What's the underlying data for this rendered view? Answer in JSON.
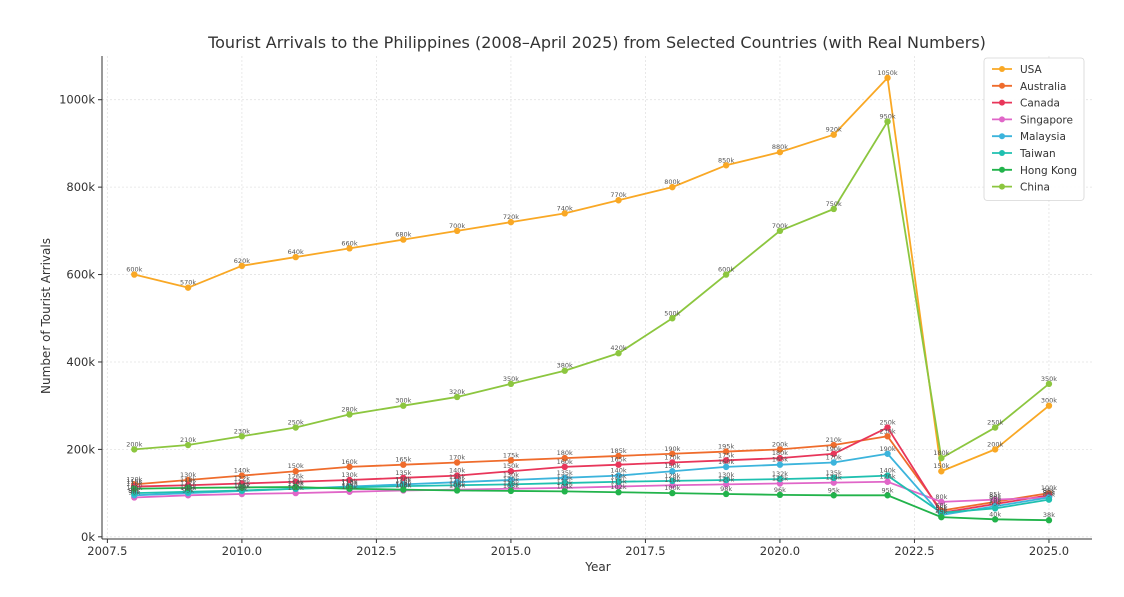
{
  "chart_data": {
    "type": "line",
    "title": "Tourist Arrivals to the Philippines (2008–April 2025) from Selected Countries (with Real Numbers)",
    "xlabel": "Year",
    "ylabel": "Number of Tourist Arrivals",
    "xlim": [
      2007.4,
      2025.8
    ],
    "ylim": [
      -5000,
      1100000
    ],
    "x_ticks": [
      2007.5,
      2010.0,
      2012.5,
      2015.0,
      2017.5,
      2020.0,
      2022.5,
      2025.0
    ],
    "x_tick_labels": [
      "2007.5",
      "2010.0",
      "2012.5",
      "2015.0",
      "2017.5",
      "2020.0",
      "2022.5",
      "2025.0"
    ],
    "y_ticks": [
      0,
      200000,
      400000,
      600000,
      800000,
      1000000
    ],
    "y_tick_labels": [
      "0k",
      "200k",
      "400k",
      "600k",
      "800k",
      "1000k"
    ],
    "grid": true,
    "legend_position": "top-right",
    "x": [
      2008,
      2009,
      2010,
      2011,
      2012,
      2013,
      2014,
      2015,
      2016,
      2017,
      2018,
      2019,
      2020,
      2021,
      2022,
      2023,
      2024,
      2025
    ],
    "series": [
      {
        "name": "USA",
        "color": "#f9a825",
        "values": [
          600000,
          570000,
          620000,
          640000,
          660000,
          680000,
          700000,
          720000,
          740000,
          770000,
          800000,
          850000,
          880000,
          920000,
          1050000,
          150000,
          200000,
          300000
        ],
        "labels": [
          "600k",
          "570k",
          "620k",
          "640k",
          "660k",
          "680k",
          "700k",
          "720k",
          "740k",
          "770k",
          "800k",
          "850k",
          "880k",
          "920k",
          "1050k",
          "150k",
          "200k",
          "300k"
        ]
      },
      {
        "name": "Australia",
        "color": "#ef6c2c",
        "values": [
          120000,
          130000,
          140000,
          150000,
          160000,
          165000,
          170000,
          175000,
          180000,
          185000,
          190000,
          195000,
          200000,
          210000,
          230000,
          60000,
          80000,
          100000
        ],
        "labels": [
          "120k",
          "130k",
          "140k",
          "150k",
          "160k",
          "165k",
          "170k",
          "175k",
          "180k",
          "185k",
          "190k",
          "195k",
          "200k",
          "210k",
          "230k",
          "60k",
          "80k",
          "100k"
        ]
      },
      {
        "name": "Canada",
        "color": "#e8365a",
        "values": [
          115000,
          118000,
          122000,
          126000,
          130000,
          135000,
          140000,
          150000,
          160000,
          165000,
          170000,
          175000,
          180000,
          190000,
          250000,
          55000,
          75000,
          95000
        ],
        "labels": [
          "115k",
          "118k",
          "122k",
          "126k",
          "130k",
          "135k",
          "140k",
          "150k",
          "160k",
          "165k",
          "170k",
          "175k",
          "180k",
          "190k",
          "250k",
          "55k",
          "75k",
          "95k"
        ]
      },
      {
        "name": "Singapore",
        "color": "#e066c8",
        "values": [
          90000,
          95000,
          98000,
          100000,
          103000,
          106000,
          108000,
          110000,
          112000,
          115000,
          118000,
          120000,
          122000,
          124000,
          126000,
          80000,
          85000,
          90000
        ],
        "labels": [
          "90k",
          "95k",
          "98k",
          "100k",
          "103k",
          "106k",
          "108k",
          "110k",
          "112k",
          "115k",
          "118k",
          "120k",
          "122k",
          "124k",
          "126k",
          "80k",
          "85k",
          "90k"
        ]
      },
      {
        "name": "Malaysia",
        "color": "#3cb4dc",
        "values": [
          95000,
          100000,
          105000,
          110000,
          115000,
          120000,
          125000,
          130000,
          135000,
          140000,
          150000,
          160000,
          165000,
          170000,
          190000,
          50000,
          70000,
          90000
        ],
        "labels": [
          "95k",
          "100k",
          "105k",
          "110k",
          "115k",
          "120k",
          "125k",
          "130k",
          "135k",
          "140k",
          "150k",
          "160k",
          "165k",
          "170k",
          "190k",
          "50k",
          "70k",
          "90k"
        ]
      },
      {
        "name": "Taiwan",
        "color": "#1fc0b0",
        "values": [
          100000,
          103000,
          106000,
          110000,
          113000,
          116000,
          118000,
          120000,
          123000,
          126000,
          128000,
          130000,
          132000,
          135000,
          140000,
          55000,
          65000,
          85000
        ],
        "labels": [
          "100k",
          "103k",
          "106k",
          "110k",
          "113k",
          "116k",
          "118k",
          "120k",
          "123k",
          "126k",
          "128k",
          "130k",
          "132k",
          "135k",
          "140k",
          "55k",
          "65k",
          "85k"
        ]
      },
      {
        "name": "Hong Kong",
        "color": "#22b34b",
        "values": [
          110000,
          112000,
          113000,
          114000,
          110000,
          108000,
          106000,
          105000,
          104000,
          102000,
          100000,
          98000,
          96000,
          95000,
          95000,
          45000,
          40000,
          38000
        ],
        "labels": [
          "110k",
          "112k",
          "113k",
          "114k",
          "110k",
          "108k",
          "106k",
          "105k",
          "104k",
          "102k",
          "100k",
          "98k",
          "96k",
          "95k",
          "95k",
          "45k",
          "40k",
          "38k"
        ]
      },
      {
        "name": "China",
        "color": "#8cc63f",
        "values": [
          200000,
          210000,
          230000,
          250000,
          280000,
          300000,
          320000,
          350000,
          380000,
          420000,
          500000,
          600000,
          700000,
          750000,
          950000,
          180000,
          250000,
          350000
        ],
        "labels": [
          "200k",
          "210k",
          "230k",
          "250k",
          "280k",
          "300k",
          "320k",
          "350k",
          "380k",
          "420k",
          "500k",
          "600k",
          "700k",
          "750k",
          "950k",
          "180k",
          "250k",
          "350k"
        ]
      }
    ]
  }
}
